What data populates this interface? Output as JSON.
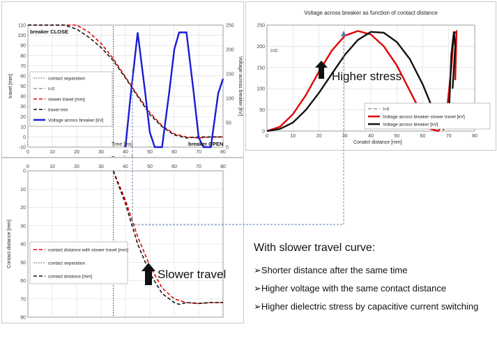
{
  "chart_data": [
    {
      "id": "travel_vs_time",
      "type": "line",
      "xlabel": "Time [ms]",
      "x2label": "Time [ms]",
      "ylabel": "travel [mm]",
      "y2label": "Voltage across breaker [kV]",
      "xlim": [
        0,
        80
      ],
      "ylim": [
        -10,
        110
      ],
      "y2lim": [
        0,
        250
      ],
      "xticks": [
        0,
        10,
        20,
        30,
        40,
        50,
        60,
        70,
        80
      ],
      "yticks": [
        -10,
        0,
        10,
        20,
        30,
        40,
        50,
        60,
        70,
        80,
        90,
        100,
        110
      ],
      "y2ticks": [
        0,
        50,
        100,
        150,
        200,
        250
      ],
      "annotations": [
        "breaker CLOSE",
        "breaker OPEN"
      ],
      "legend_position": "bottom-left",
      "series": [
        {
          "name": "contact separation",
          "style": "dotted",
          "color": "#333333",
          "x": [
            35,
            35
          ],
          "y": [
            -10,
            110
          ]
        },
        {
          "name": "I=0",
          "style": "dashed",
          "color": "#999999",
          "x": [],
          "y": []
        },
        {
          "name": "slower travel [mm]",
          "style": "dashed",
          "color": "#e00000",
          "x": [
            0,
            20,
            25,
            30,
            35,
            40,
            45,
            50,
            55,
            60,
            65,
            70,
            75,
            80
          ],
          "y": [
            110,
            110,
            103,
            92,
            77,
            59,
            41,
            24,
            11,
            3,
            0,
            -1,
            0,
            0
          ]
        },
        {
          "name": "travel mm",
          "style": "dashed",
          "color": "#111111",
          "x": [
            0,
            15,
            20,
            25,
            30,
            35,
            40,
            45,
            50,
            55,
            60,
            65,
            70,
            75,
            80
          ],
          "y": [
            110,
            110,
            106,
            98,
            88,
            75,
            58,
            40,
            22,
            10,
            2,
            -1,
            0,
            0,
            0
          ]
        },
        {
          "name": "Voltage across breaker [kV]",
          "style": "solid",
          "color": "#1b1bd6",
          "axis": "y2",
          "x": [
            40,
            42,
            45,
            48,
            50,
            52,
            55,
            58,
            60,
            62,
            65,
            68,
            70,
            72,
            75,
            78,
            80
          ],
          "y": [
            0,
            100,
            235,
            115,
            30,
            0,
            0,
            115,
            200,
            235,
            235,
            110,
            20,
            0,
            0,
            110,
            140
          ]
        }
      ]
    },
    {
      "id": "voltage_vs_contact_distance",
      "type": "line",
      "title": "Voltage across breaker as function of contact distance",
      "xlabel": "Conatct distance [mm]",
      "xlim": [
        0,
        80
      ],
      "ylim": [
        0,
        250
      ],
      "xticks": [
        0,
        10,
        20,
        30,
        40,
        50,
        60,
        70,
        80
      ],
      "yticks": [
        0,
        50,
        100,
        150,
        200,
        250
      ],
      "annotations": [
        "I=0",
        "Higher stress"
      ],
      "legend_position": "bottom-right",
      "series": [
        {
          "name": "I=0",
          "style": "dashed",
          "color": "#999999",
          "x": [],
          "y": []
        },
        {
          "name": "Voltage across breaker slower travel [kV]",
          "style": "solid",
          "color": "#e00000",
          "x": [
            0,
            5,
            10,
            15,
            20,
            25,
            30,
            35,
            40,
            45,
            50,
            55,
            60,
            63,
            66,
            69,
            71,
            72,
            73,
            72.5
          ],
          "y": [
            0,
            10,
            40,
            85,
            140,
            190,
            225,
            236,
            228,
            200,
            155,
            95,
            35,
            5,
            0,
            30,
            150,
            230,
            235,
            120
          ]
        },
        {
          "name": "Voltage across breaker [kV]",
          "style": "solid",
          "color": "#111111",
          "x": [
            0,
            5,
            10,
            15,
            20,
            25,
            30,
            35,
            40,
            45,
            50,
            55,
            60,
            65,
            68,
            70,
            71,
            72,
            72.5,
            71.5
          ],
          "y": [
            0,
            5,
            20,
            50,
            90,
            135,
            180,
            215,
            234,
            232,
            210,
            170,
            110,
            35,
            5,
            30,
            180,
            235,
            200,
            100
          ]
        }
      ]
    },
    {
      "id": "contact_distance_vs_time",
      "type": "line",
      "x2label": "Time [ms]",
      "ylabel": "Contact distance [mm]",
      "xlim": [
        0,
        80
      ],
      "ylim": [
        80,
        0
      ],
      "xticks": [
        0,
        10,
        20,
        30,
        40,
        50,
        60,
        70,
        80
      ],
      "yticks": [
        0,
        10,
        20,
        30,
        40,
        50,
        60,
        70,
        80
      ],
      "annotations": [
        "Slower travel"
      ],
      "legend_position": "bottom-left",
      "series": [
        {
          "name": "contact distance with slower travel [mm]",
          "style": "dashed",
          "color": "#e00000",
          "x": [
            35,
            40,
            45,
            50,
            55,
            60,
            65,
            70,
            75,
            80
          ],
          "y": [
            0,
            16,
            36,
            52,
            64,
            70,
            72,
            72.5,
            72,
            72
          ]
        },
        {
          "name": "contact separation",
          "style": "dotted",
          "color": "#333333",
          "x": [
            35,
            35
          ],
          "y": [
            0,
            80
          ]
        },
        {
          "name": "contact distance [mm]",
          "style": "dashed",
          "color": "#111111",
          "x": [
            35,
            40,
            45,
            50,
            55,
            60,
            62,
            65,
            70,
            75,
            80
          ],
          "y": [
            0,
            18,
            40,
            56,
            67,
            72,
            73,
            72,
            72.5,
            72,
            72
          ]
        }
      ]
    }
  ],
  "notes": {
    "heading": "With slower travel curve:",
    "bullet_symbol": "➢",
    "bullets": [
      "Shorter distance after the same time",
      "Higher voltage with the same contact distance",
      "Higher dielectric stress by capacitive current switching"
    ]
  },
  "colors": {
    "red": "#e00000",
    "black": "#111111",
    "blue": "#1b1bd6",
    "grid": "#d9d9d9",
    "connector": "#5b7fb5"
  }
}
